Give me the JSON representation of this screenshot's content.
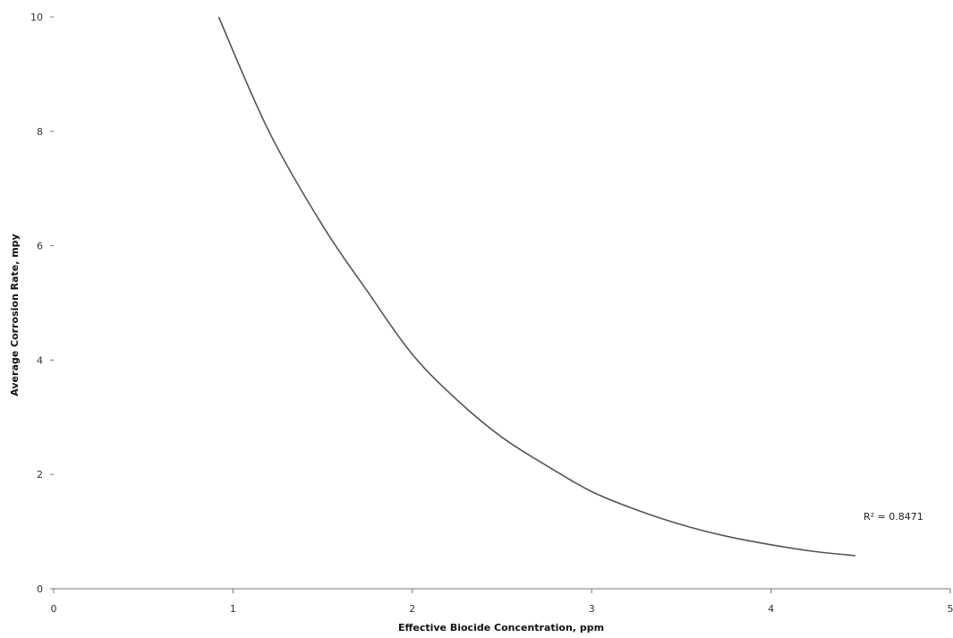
{
  "chart_data": {
    "type": "line",
    "title": "",
    "xlabel": "Effective Biocide Concentration, ppm",
    "ylabel": "Average Corrosion Rate, mpy",
    "xlim": [
      0,
      5
    ],
    "ylim": [
      0,
      10
    ],
    "x_ticks": [
      "0",
      "1",
      "2",
      "3",
      "4",
      "5"
    ],
    "y_ticks": [
      "0",
      "2",
      "4",
      "6",
      "8",
      "10"
    ],
    "grid": false,
    "legend": "none",
    "annotation": "R² = 0.8471",
    "series": [
      {
        "x": [
          0.92,
          1.2,
          1.5,
          1.75,
          2.0,
          2.25,
          2.5,
          2.75,
          3.0,
          3.25,
          3.5,
          3.75,
          4.0,
          4.25,
          4.47
        ],
        "y": [
          10.0,
          8.0,
          6.35,
          5.2,
          4.1,
          3.3,
          2.65,
          2.15,
          1.7,
          1.38,
          1.12,
          0.92,
          0.77,
          0.65,
          0.58
        ]
      }
    ],
    "colors": {
      "line": "#555555",
      "axis": "#777777"
    }
  }
}
